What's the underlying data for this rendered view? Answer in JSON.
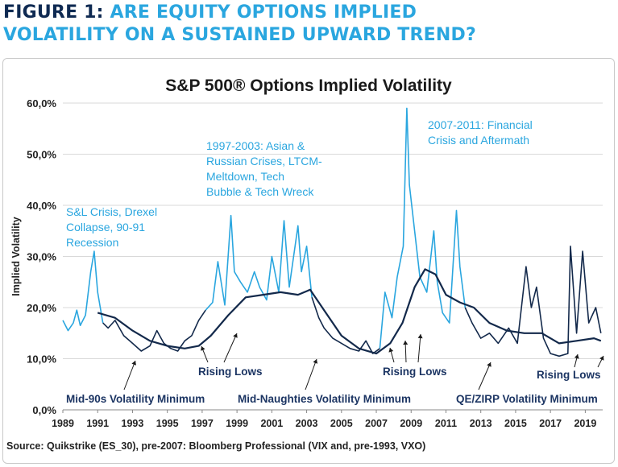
{
  "heading": {
    "number": "FIGURE 1:",
    "line1": "ARE EQUITY OPTIONS IMPLIED",
    "line2": "VOLATILITY ON A SUSTAINED UPWARD TREND?"
  },
  "source": "Source: Quikstrike (ES_30), pre-2007: Bloomberg Professional (VIX and, pre-1993, VXO)",
  "colors": {
    "light": "#2aa6df",
    "dark": "#13294b",
    "annotation_light": "#2aa6df",
    "annotation_dark": "#1c3563",
    "grid": "#d9d9d9"
  },
  "chart_data": {
    "type": "line",
    "title": "S&P 500® Options Implied Volatility",
    "xlabel": "",
    "ylabel": "Implied Volatility",
    "xlim": [
      1989,
      2020
    ],
    "ylim": [
      0,
      60
    ],
    "yticks": [
      0,
      10,
      20,
      30,
      40,
      50,
      60
    ],
    "ytick_labels": [
      "0,0%",
      "10,0%",
      "20,0%",
      "30,0%",
      "40,0%",
      "50,0%",
      "60,0%"
    ],
    "xticks": [
      1989,
      1991,
      1993,
      1995,
      1997,
      1999,
      2001,
      2003,
      2005,
      2007,
      2009,
      2011,
      2013,
      2015,
      2017,
      2019
    ],
    "xtick_labels": [
      "1989",
      "1991",
      "1993",
      "1995",
      "1997",
      "1999",
      "2001",
      "2003",
      "2005",
      "2007",
      "2009",
      "2011",
      "2013",
      "2015",
      "2017",
      "2019"
    ],
    "grid": true,
    "legend": "none",
    "series": [
      {
        "style": "light",
        "x": [
          1989.0,
          1989.3,
          1989.6,
          1989.8,
          1990.0,
          1990.3,
          1990.6,
          1990.8,
          1991.0,
          1991.3
        ],
        "y": [
          17.5,
          15.5,
          17.0,
          19.5,
          16.5,
          18.5,
          27.0,
          31.0,
          23.0,
          17.0
        ]
      },
      {
        "style": "dark",
        "x": [
          1991.3,
          1991.6,
          1992.0,
          1992.5,
          1993.0,
          1993.5,
          1994.0,
          1994.4,
          1994.8,
          1995.2,
          1995.6,
          1996.0,
          1996.4,
          1996.8,
          1997.2
        ],
        "y": [
          17.0,
          16.0,
          17.5,
          14.5,
          13.0,
          11.5,
          12.5,
          15.5,
          13.0,
          12.0,
          11.5,
          13.5,
          14.5,
          17.5,
          19.5
        ]
      },
      {
        "style": "light",
        "x": [
          1997.2,
          1997.6,
          1997.9,
          1998.3,
          1998.65,
          1998.85,
          1999.2,
          1999.6,
          2000.0,
          2000.3,
          2000.7,
          2001.0,
          2001.4,
          2001.7,
          2002.0,
          2002.5,
          2002.7,
          2003.0,
          2003.3
        ],
        "y": [
          19.5,
          21.0,
          29.0,
          20.5,
          38.0,
          27.0,
          25.0,
          23.0,
          27.0,
          24.0,
          21.5,
          30.0,
          23.0,
          37.0,
          24.0,
          36.0,
          27.0,
          32.0,
          22.0
        ]
      },
      {
        "style": "dark",
        "x": [
          2003.3,
          2003.7,
          2004.0,
          2004.5,
          2005.0,
          2005.5,
          2006.0,
          2006.4,
          2006.8,
          2007.2
        ],
        "y": [
          22.0,
          18.0,
          16.0,
          14.0,
          13.0,
          12.0,
          11.5,
          13.5,
          11.0,
          12.0
        ]
      },
      {
        "style": "light",
        "x": [
          2007.2,
          2007.5,
          2007.9,
          2008.2,
          2008.55,
          2008.75,
          2008.9,
          2009.2,
          2009.5,
          2009.9,
          2010.3,
          2010.5,
          2010.8,
          2011.2,
          2011.6,
          2011.8,
          2012.1
        ],
        "y": [
          12.0,
          23.0,
          18.0,
          26.0,
          32.0,
          59.0,
          44.0,
          35.0,
          26.0,
          23.0,
          35.0,
          25.0,
          19.0,
          17.0,
          39.0,
          28.0,
          20.0
        ]
      },
      {
        "style": "dark",
        "x": [
          2012.1,
          2012.5,
          2013.0,
          2013.5,
          2014.0,
          2014.6,
          2015.1,
          2015.6,
          2015.9,
          2016.2,
          2016.6,
          2017.0,
          2017.5,
          2018.0,
          2018.15,
          2018.5,
          2018.85,
          2019.2,
          2019.6,
          2019.9
        ],
        "y": [
          20.0,
          17.0,
          14.0,
          15.0,
          13.0,
          16.0,
          13.0,
          28.0,
          20.0,
          24.0,
          14.0,
          11.0,
          10.5,
          11.0,
          32.0,
          15.0,
          31.0,
          17.0,
          20.0,
          15.0
        ]
      },
      {
        "style": "dark",
        "name_role": "trend",
        "x": [
          1991.0,
          1992.0,
          1993.0,
          1994.0,
          1995.0,
          1996.0,
          1996.8,
          1997.5,
          1998.5,
          1999.5,
          2000.5,
          2001.5,
          2002.5,
          2003.2,
          2004.0,
          2005.0,
          2006.0,
          2007.0,
          2007.8,
          2008.5,
          2009.2,
          2009.8,
          2010.4,
          2011.0,
          2011.8,
          2012.6,
          2013.5,
          2014.5,
          2015.5,
          2016.5,
          2017.5,
          2018.5,
          2019.5,
          2019.9
        ],
        "y": [
          19.0,
          18.0,
          15.5,
          13.5,
          12.5,
          12.0,
          12.5,
          14.5,
          18.5,
          22.0,
          22.5,
          23.0,
          22.5,
          23.5,
          19.5,
          14.5,
          12.0,
          11.0,
          13.0,
          17.0,
          24.0,
          27.5,
          26.5,
          22.5,
          21.0,
          20.0,
          17.0,
          15.5,
          15.0,
          15.0,
          13.0,
          13.5,
          14.0,
          13.5
        ]
      }
    ],
    "annotations": {
      "snl": [
        "S&L Crisis, Drexel",
        "Collapse, 90-91",
        "Recession"
      ],
      "asian": [
        "1997-2003: Asian &",
        "Russian Crises, LTCM-",
        "Meltdown, Tech",
        "Bubble & Tech Wreck"
      ],
      "financial": [
        "2007-2011: Financial",
        "Crisis and Aftermath"
      ],
      "rising_lows_1": "Rising Lows",
      "rising_lows_2": "Rising Lows",
      "rising_lows_3": "Rising Lows",
      "min_90s": "Mid-90s Volatility Minimum",
      "min_naughties": "Mid-Naughties Volatility Minimum",
      "min_qe": "QE/ZIRP Volatility Minimum"
    }
  }
}
